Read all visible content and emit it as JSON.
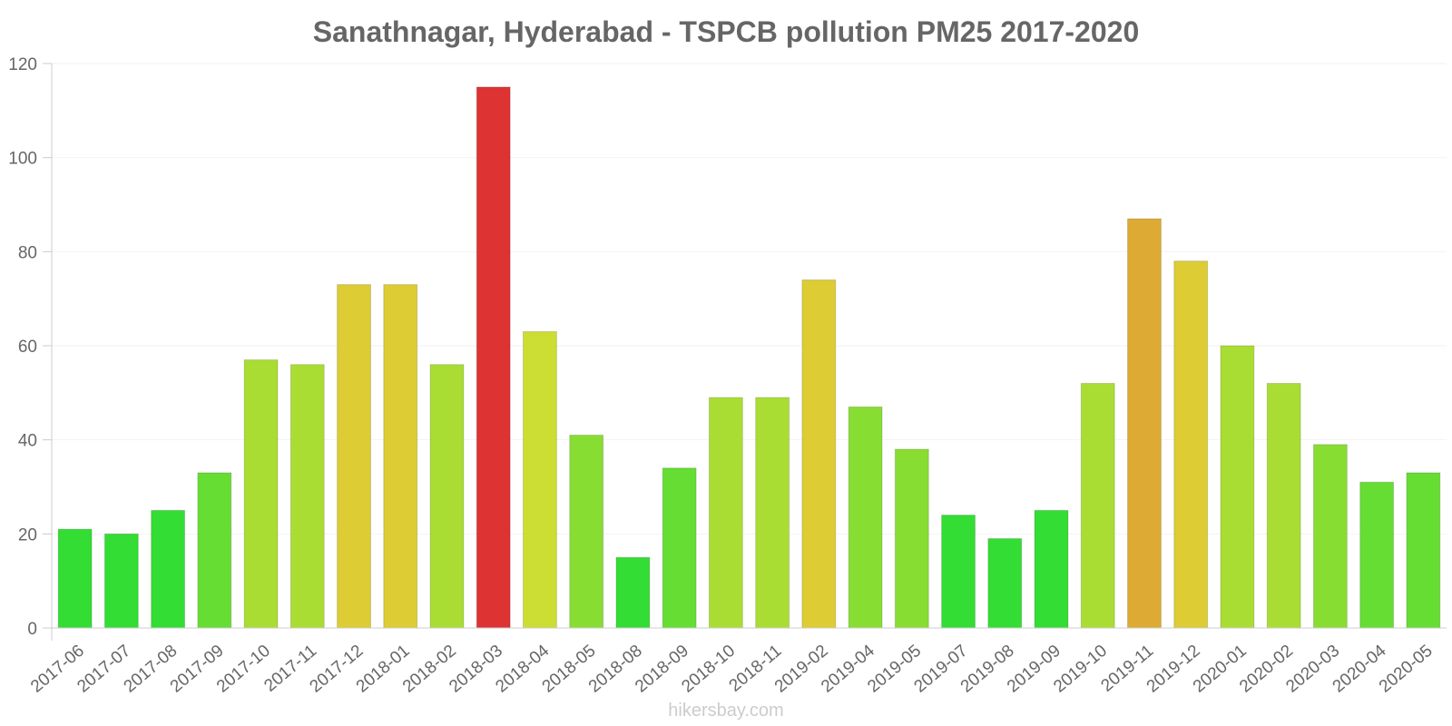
{
  "chart_data": {
    "type": "bar",
    "title": "Sanathnagar, Hyderabad - TSPCB pollution PM25 2017-2020",
    "xlabel": "",
    "ylabel": "",
    "ylim": [
      0,
      120
    ],
    "yticks": [
      0,
      20,
      40,
      60,
      80,
      100,
      120
    ],
    "grid": true,
    "categories": [
      "2017-06",
      "2017-07",
      "2017-08",
      "2017-09",
      "2017-10",
      "2017-11",
      "2017-12",
      "2018-01",
      "2018-02",
      "2018-03",
      "2018-04",
      "2018-05",
      "2018-08",
      "2018-09",
      "2018-10",
      "2018-11",
      "2019-02",
      "2019-04",
      "2019-05",
      "2019-07",
      "2019-08",
      "2019-09",
      "2019-10",
      "2019-11",
      "2019-12",
      "2020-01",
      "2020-02",
      "2020-03",
      "2020-04",
      "2020-05"
    ],
    "values": [
      21,
      20,
      25,
      33,
      57,
      56,
      73,
      73,
      56,
      115,
      63,
      41,
      15,
      34,
      49,
      49,
      74,
      47,
      38,
      24,
      19,
      25,
      52,
      87,
      78,
      60,
      52,
      39,
      31,
      33
    ],
    "colors": [
      "#33dd33",
      "#33dd33",
      "#33dd33",
      "#66dd33",
      "#aadd33",
      "#aadd33",
      "#ddcc33",
      "#ddcc33",
      "#aadd33",
      "#dd3333",
      "#ccdd33",
      "#88dd33",
      "#33dd33",
      "#66dd33",
      "#aadd33",
      "#aadd33",
      "#ddcc33",
      "#88dd33",
      "#88dd33",
      "#33dd33",
      "#33dd33",
      "#33dd33",
      "#aadd33",
      "#ddaa33",
      "#ddcc33",
      "#aadd33",
      "#aadd33",
      "#88dd33",
      "#66dd33",
      "#66dd33"
    ]
  },
  "watermark": "hikersbay.com"
}
